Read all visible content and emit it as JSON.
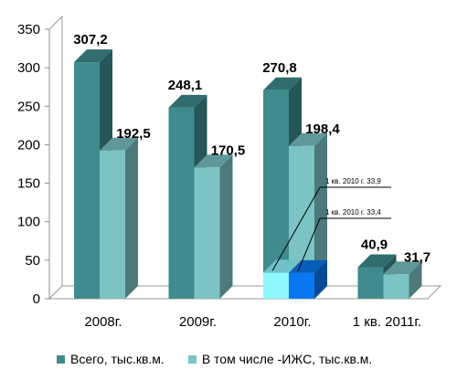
{
  "chart_data": {
    "type": "bar",
    "categories": [
      "2008г.",
      "2009г.",
      "2010г.",
      "1 кв. 2011г."
    ],
    "series": [
      {
        "name": "Всего, тыс.кв.м.",
        "values": [
          307.2,
          248.1,
          270.8,
          40.9
        ],
        "labels": [
          "307,2",
          "248,1",
          "270,8",
          "40,9"
        ],
        "color": "#3f8b8e"
      },
      {
        "name": "В том числе -ИЖС, тыс.кв.м.",
        "values": [
          192.5,
          170.5,
          198.4,
          31.7
        ],
        "labels": [
          "192,5",
          "170,5",
          "198,4",
          "31,7"
        ],
        "color": "#7bc3c4"
      }
    ],
    "highlights": [
      {
        "category_index": 2,
        "series_index": 0,
        "value": 33.9,
        "label": "1 кв. 2010 г. 33,9",
        "color": "#8ff7ff"
      },
      {
        "category_index": 2,
        "series_index": 1,
        "value": 33.4,
        "label": "1 кв. 2010 г. 33,4",
        "color": "#0a78f0"
      }
    ],
    "yticks": [
      "0",
      "50",
      "100",
      "150",
      "200",
      "250",
      "300",
      "350"
    ],
    "ylim": [
      0,
      350
    ],
    "grid": false,
    "legend_position": "bottom"
  }
}
